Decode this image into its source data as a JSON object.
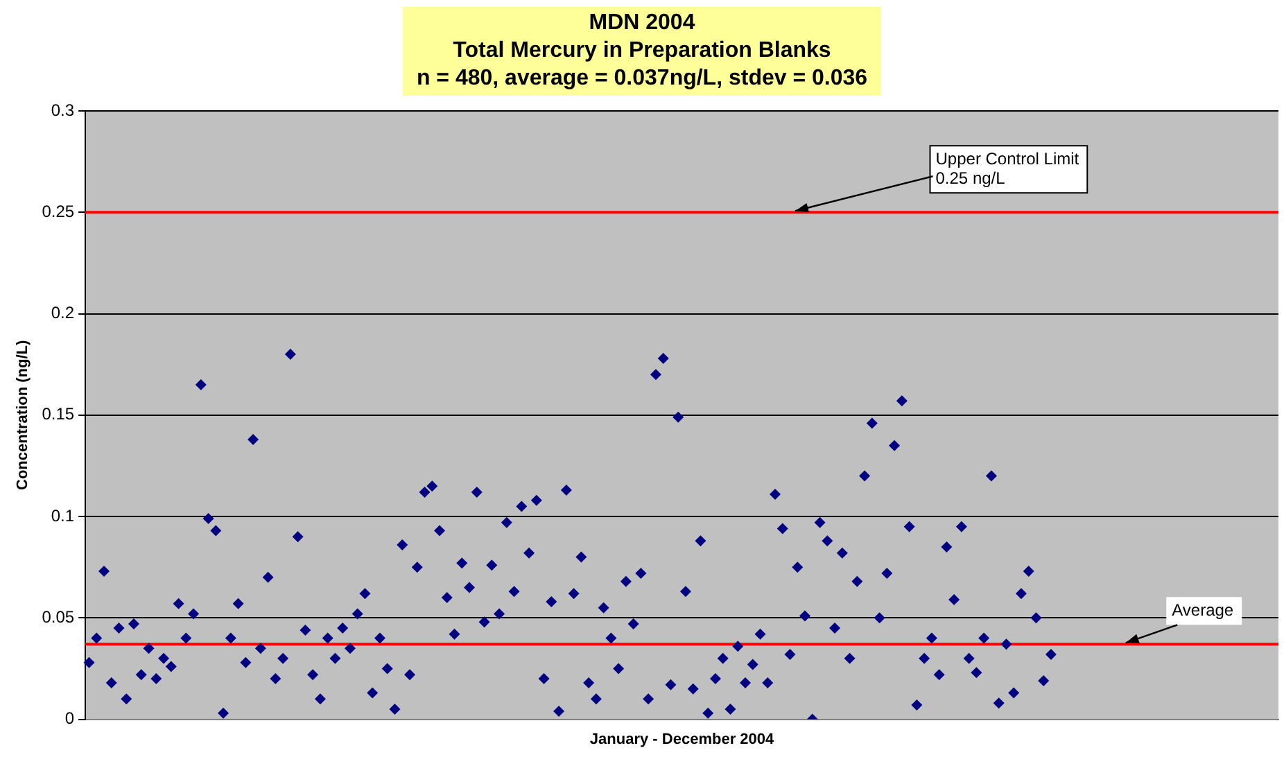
{
  "chart_data": {
    "type": "scatter",
    "title": "MDN 2004\nTotal Mercury in Preparation Blanks",
    "subtitle": "n = 480, average = 0.037ng/L, stdev = 0.036",
    "xlabel": "January - December 2004",
    "ylabel": "Concentration (ng/L)",
    "categories": [
      null,
      null,
      null,
      null,
      null,
      null,
      null,
      null,
      null,
      null,
      null,
      null,
      null,
      null,
      null,
      null,
      null,
      null,
      null,
      null,
      null,
      null,
      null,
      null,
      null,
      null,
      null,
      null,
      null,
      null,
      null,
      null,
      null,
      null,
      null,
      null,
      null,
      null,
      null,
      null,
      null,
      null,
      null,
      null,
      null,
      null,
      null,
      null,
      null,
      null,
      null,
      null,
      null,
      null,
      null,
      null,
      null,
      null,
      null,
      null,
      null,
      null,
      null,
      null,
      null,
      null,
      null,
      null,
      null,
      null,
      null,
      null,
      null,
      null,
      null,
      null,
      null,
      null,
      null,
      null,
      null,
      null,
      null,
      null,
      null,
      null,
      null,
      null,
      null,
      null,
      null,
      null,
      null,
      null,
      null,
      null,
      null,
      null,
      null,
      null,
      null,
      null,
      null,
      null,
      null,
      null,
      null,
      null,
      null,
      null,
      null,
      null,
      null,
      null,
      null,
      null,
      null,
      null,
      null,
      null,
      null,
      null,
      null,
      null,
      null,
      null,
      null,
      null,
      null,
      null,
      null,
      null,
      null,
      null,
      null,
      null,
      null,
      null,
      null,
      null,
      null,
      null,
      null,
      null,
      null,
      null,
      null,
      null,
      null,
      null,
      null,
      null,
      null,
      null,
      null,
      null,
      null,
      null,
      null,
      null
    ],
    "series": [
      {
        "color": "#000080",
        "values": [
          0.028,
          0.04,
          0.073,
          0.018,
          0.045,
          0.01,
          0.047,
          0.022,
          0.035,
          0.02,
          0.03,
          0.026,
          0.057,
          0.04,
          0.052,
          0.165,
          0.099,
          0.093,
          0.003,
          0.04,
          0.057,
          0.028,
          0.138,
          0.035,
          0.07,
          0.02,
          0.03,
          0.18,
          0.09,
          0.044,
          0.022,
          0.01,
          0.04,
          0.03,
          0.045,
          0.035,
          0.052,
          0.062,
          0.013,
          0.04,
          0.025,
          0.005,
          0.086,
          0.022,
          0.075,
          0.112,
          0.115,
          0.093,
          0.06,
          0.042,
          0.077,
          0.065,
          0.112,
          0.048,
          0.076,
          0.052,
          0.097,
          0.063,
          0.105,
          0.082,
          0.108,
          0.02,
          0.058,
          0.004,
          0.113,
          0.062,
          0.08,
          0.018,
          0.01,
          0.055,
          0.04,
          0.025,
          0.068,
          0.047,
          0.072,
          0.01,
          0.17,
          0.178,
          0.017,
          0.149,
          0.063,
          0.015,
          0.088,
          0.003,
          0.02,
          0.03,
          0.005,
          0.036,
          0.018,
          0.027,
          0.042,
          0.018,
          0.111,
          0.094,
          0.032,
          0.075,
          0.051,
          0.0,
          0.097,
          0.088,
          0.045,
          0.082,
          0.03,
          0.068,
          0.12,
          0.146,
          0.05,
          0.072,
          0.135,
          0.157,
          0.095,
          0.007,
          0.03,
          0.04,
          0.022,
          0.085,
          0.059,
          0.095,
          0.03,
          0.023,
          0.04,
          0.12,
          0.008,
          0.037,
          0.013,
          0.062,
          0.073,
          0.05,
          0.019,
          0.032,
          null,
          null,
          null,
          null,
          null,
          null,
          null,
          null,
          null,
          null,
          null,
          null,
          null,
          null,
          null,
          null,
          null,
          null,
          null,
          null,
          null,
          null,
          null,
          null,
          null,
          null,
          null,
          null,
          null,
          null
        ]
      }
    ],
    "ylim": [
      0,
      0.3
    ],
    "yticks": [
      0,
      0.05,
      0.1,
      0.15,
      0.2,
      0.25,
      0.3
    ],
    "grid": "y",
    "legend": false,
    "marker": "diamond",
    "tick_labels": "y",
    "ref_lines": [
      {
        "axis": "y",
        "value": 0.25,
        "label": "Upper Control Limit\n0.25 ng/L",
        "color": "#ff0000"
      },
      {
        "axis": "y",
        "value": 0.037,
        "label": "Average",
        "color": "#ff0000"
      }
    ]
  }
}
